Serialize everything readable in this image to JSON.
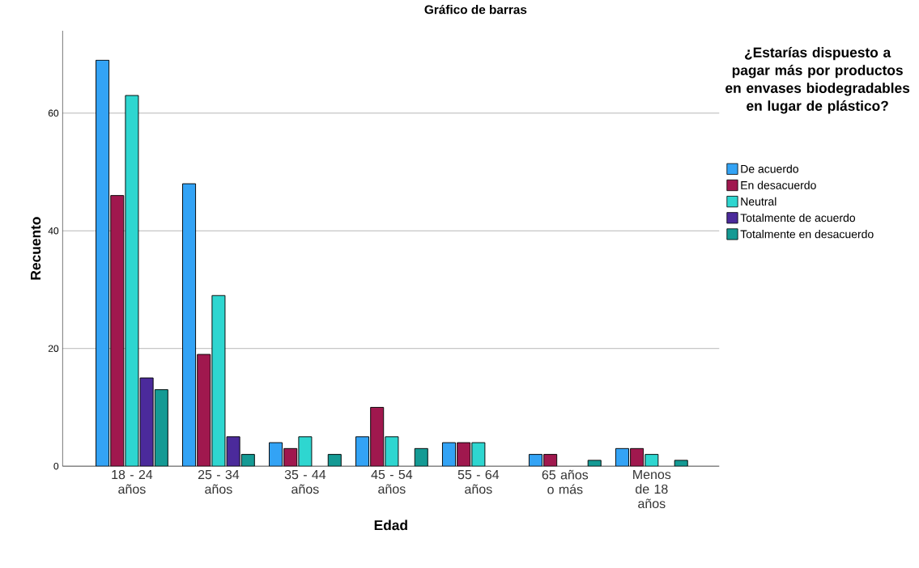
{
  "chart_data": {
    "type": "bar",
    "title": "Gráfico de barras",
    "xlabel": "Edad",
    "ylabel": "Recuento",
    "legend_title": "¿Estarías dispuesto a pagar más por productos en envases biodegradables en lugar de plástico?",
    "categories": [
      "18 - 24 años",
      "25 - 34 años",
      "35 - 44 años",
      "45 - 54 años",
      "55 - 64 años",
      "65 años o más",
      "Menos de 18 años"
    ],
    "series": [
      {
        "name": "De acuerdo",
        "color": "#33a3f5",
        "values": [
          69,
          48,
          4,
          5,
          4,
          2,
          3
        ]
      },
      {
        "name": "En desacuerdo",
        "color": "#a0184e",
        "values": [
          46,
          19,
          3,
          10,
          4,
          2,
          3
        ]
      },
      {
        "name": "Neutral",
        "color": "#2ed6d0",
        "values": [
          63,
          29,
          5,
          5,
          4,
          null,
          2
        ]
      },
      {
        "name": "Totalmente de acuerdo",
        "color": "#4b2a9b",
        "values": [
          15,
          5,
          null,
          null,
          null,
          null,
          null
        ]
      },
      {
        "name": "Totalmente en desacuerdo",
        "color": "#149a94",
        "values": [
          13,
          2,
          2,
          3,
          null,
          1,
          1
        ]
      }
    ],
    "ylim": [
      0,
      74
    ],
    "yticks": [
      0,
      20,
      40,
      60
    ],
    "grid": "y",
    "legend": "top right"
  }
}
